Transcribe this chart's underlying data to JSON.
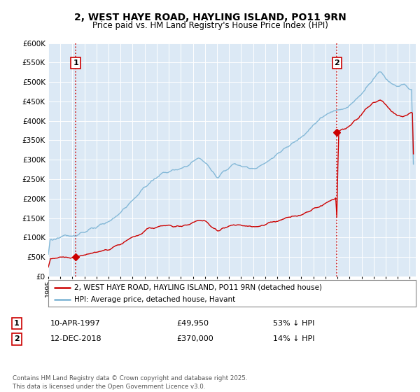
{
  "title": "2, WEST HAYE ROAD, HAYLING ISLAND, PO11 9RN",
  "subtitle": "Price paid vs. HM Land Registry's House Price Index (HPI)",
  "sale1_date": 1997.27,
  "sale1_price": 49950,
  "sale1_label": "1",
  "sale2_date": 2018.95,
  "sale2_price": 370000,
  "sale2_label": "2",
  "hpi_color": "#7ab3d4",
  "sale_color": "#cc0000",
  "annotation1_date": "10-APR-1997",
  "annotation1_price": "£49,950",
  "annotation1_hpi": "53% ↓ HPI",
  "annotation2_date": "12-DEC-2018",
  "annotation2_price": "£370,000",
  "annotation2_hpi": "14% ↓ HPI",
  "legend_label1": "2, WEST HAYE ROAD, HAYLING ISLAND, PO11 9RN (detached house)",
  "legend_label2": "HPI: Average price, detached house, Havant",
  "footer": "Contains HM Land Registry data © Crown copyright and database right 2025.\nThis data is licensed under the Open Government Licence v3.0.",
  "ylim_max": 600000,
  "xlim_min": 1995.0,
  "xlim_max": 2025.5,
  "background_color": "#dce9f5"
}
